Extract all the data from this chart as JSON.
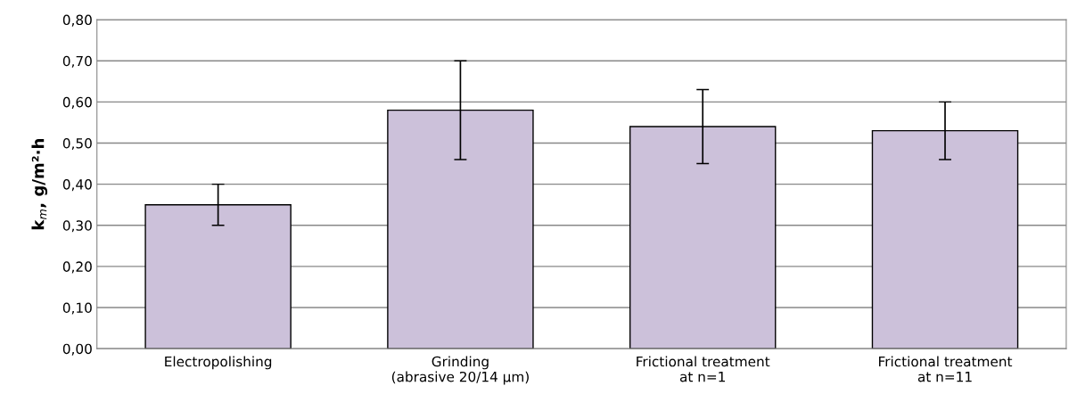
{
  "chart_data": {
    "type": "bar",
    "ylabel": "k$_{m}$, g/m²·h",
    "categories": [
      "Electropolishing",
      "Grinding\n(abrasive 20/14 µm)",
      "Frictional treatment\nat n=1",
      "Frictional treatment\nat n=11"
    ],
    "values": [
      0.35,
      0.58,
      0.54,
      0.53
    ],
    "color": "#ccc1da",
    "errors": [
      [
        0.3,
        0.4
      ],
      [
        0.46,
        0.7
      ],
      [
        0.45,
        0.63
      ],
      [
        0.46,
        0.6
      ]
    ],
    "ylim": [
      0,
      0.8
    ],
    "yticks": [
      {
        "value": 0,
        "label": "0,00"
      },
      {
        "value": 0.1,
        "label": "0,10"
      },
      {
        "value": 0.2,
        "label": "0,20"
      },
      {
        "value": 0.3,
        "label": "0,30"
      },
      {
        "value": 0.4,
        "label": "0,40"
      },
      {
        "value": 0.5,
        "label": "0,50"
      },
      {
        "value": 0.6,
        "label": "0,60"
      },
      {
        "value": 0.7,
        "label": "0,70"
      },
      {
        "value": 0.8,
        "label": "0,80"
      }
    ],
    "grid": "y",
    "legend": false
  }
}
